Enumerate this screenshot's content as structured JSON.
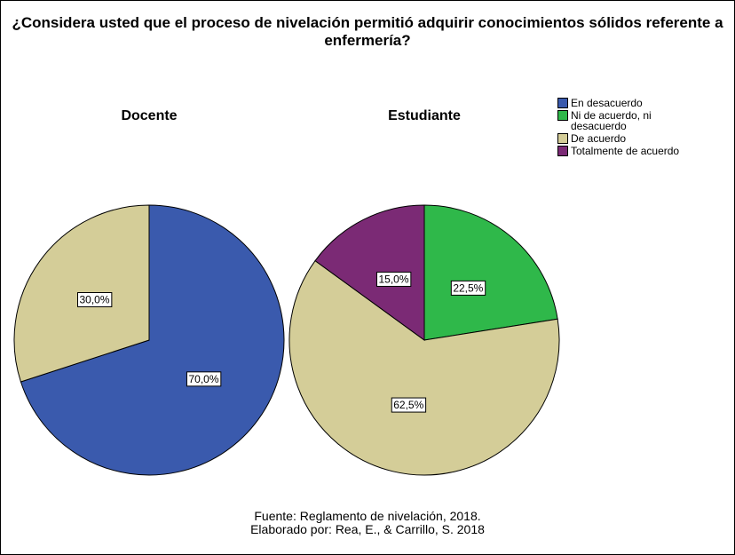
{
  "title": "¿Considera usted que el proceso de nivelación permitió adquirir conocimientos sólidos referente a enfermería?",
  "legend": {
    "labels": [
      "En desacuerdo",
      "Ni de acuerdo, ni desacuerdo",
      "De acuerdo",
      "Totalmente de acuerdo"
    ],
    "colors": [
      "#3a5aad",
      "#2fb84a",
      "#d4cd98",
      "#7b2a75"
    ]
  },
  "caption": [
    "Fuente: Reglamento de nivelación, 2018.",
    "Elaborado por: Rea, E., & Carrillo, S. 2018"
  ],
  "chart_data": [
    {
      "type": "pie",
      "title": "Docente",
      "categories": [
        "En desacuerdo",
        "De acuerdo"
      ],
      "values": [
        70,
        30
      ],
      "value_labels": [
        "70,0%",
        "30,0%"
      ],
      "colors": [
        "#3a5aad",
        "#d4cd98"
      ]
    },
    {
      "type": "pie",
      "title": "Estudiante",
      "categories": [
        "Ni de acuerdo, ni desacuerdo",
        "De acuerdo",
        "Totalmente de acuerdo"
      ],
      "values": [
        22.5,
        62.5,
        15
      ],
      "value_labels": [
        "22,5%",
        "62,5%",
        "15,0%"
      ],
      "colors": [
        "#2fb84a",
        "#d4cd98",
        "#7b2a75"
      ]
    }
  ]
}
